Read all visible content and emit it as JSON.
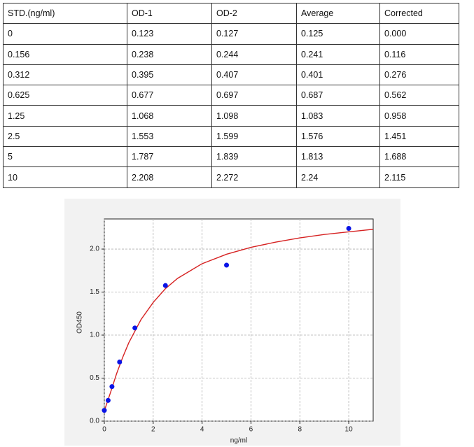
{
  "table": {
    "header": [
      "STD.(ng/ml)",
      "OD-1",
      "OD-2",
      "Average",
      "Corrected"
    ],
    "rows": [
      [
        "0",
        "0.123",
        "0.127",
        "0.125",
        "0.000"
      ],
      [
        "0.156",
        "0.238",
        "0.244",
        "0.241",
        "0.116"
      ],
      [
        "0.312",
        "0.395",
        "0.407",
        "0.401",
        "0.276"
      ],
      [
        "0.625",
        "0.677",
        "0.697",
        "0.687",
        "0.562"
      ],
      [
        "1.25",
        "1.068",
        "1.098",
        "1.083",
        "0.958"
      ],
      [
        "2.5",
        "1.553",
        "1.599",
        "1.576",
        "1.451"
      ],
      [
        "5",
        "1.787",
        "1.839",
        "1.813",
        "1.688"
      ],
      [
        "10",
        "2.208",
        "2.272",
        "2.24",
        "2.115"
      ]
    ]
  },
  "chart_data": {
    "type": "scatter",
    "x_label": "ng/ml",
    "y_label": "OD450",
    "xlim": [
      0,
      11
    ],
    "ylim": [
      0,
      2.35
    ],
    "xticks": [
      0,
      2,
      4,
      6,
      8,
      10
    ],
    "yticks": [
      {
        "value": 0,
        "label": "0.0"
      },
      0.5,
      {
        "value": 1,
        "label": "1.0"
      },
      1.5,
      {
        "value": 2,
        "label": "2.0"
      }
    ],
    "grid": true,
    "series": [
      {
        "type": "line",
        "color": "#d62222",
        "x": [
          0,
          0.25,
          0.5,
          0.75,
          1,
          1.5,
          2,
          2.5,
          3,
          4,
          5,
          6,
          7,
          8,
          9,
          10,
          11
        ],
        "y": [
          0.12,
          0.33,
          0.55,
          0.74,
          0.91,
          1.18,
          1.38,
          1.54,
          1.66,
          1.83,
          1.94,
          2.02,
          2.08,
          2.13,
          2.17,
          2.2,
          2.23
        ]
      },
      {
        "type": "scatter",
        "color": "#0a14e6",
        "x": [
          0,
          0.156,
          0.312,
          0.625,
          1.25,
          2.5,
          5,
          10
        ],
        "y": [
          0.125,
          0.241,
          0.401,
          0.687,
          1.083,
          1.576,
          1.813,
          2.24
        ]
      }
    ]
  }
}
